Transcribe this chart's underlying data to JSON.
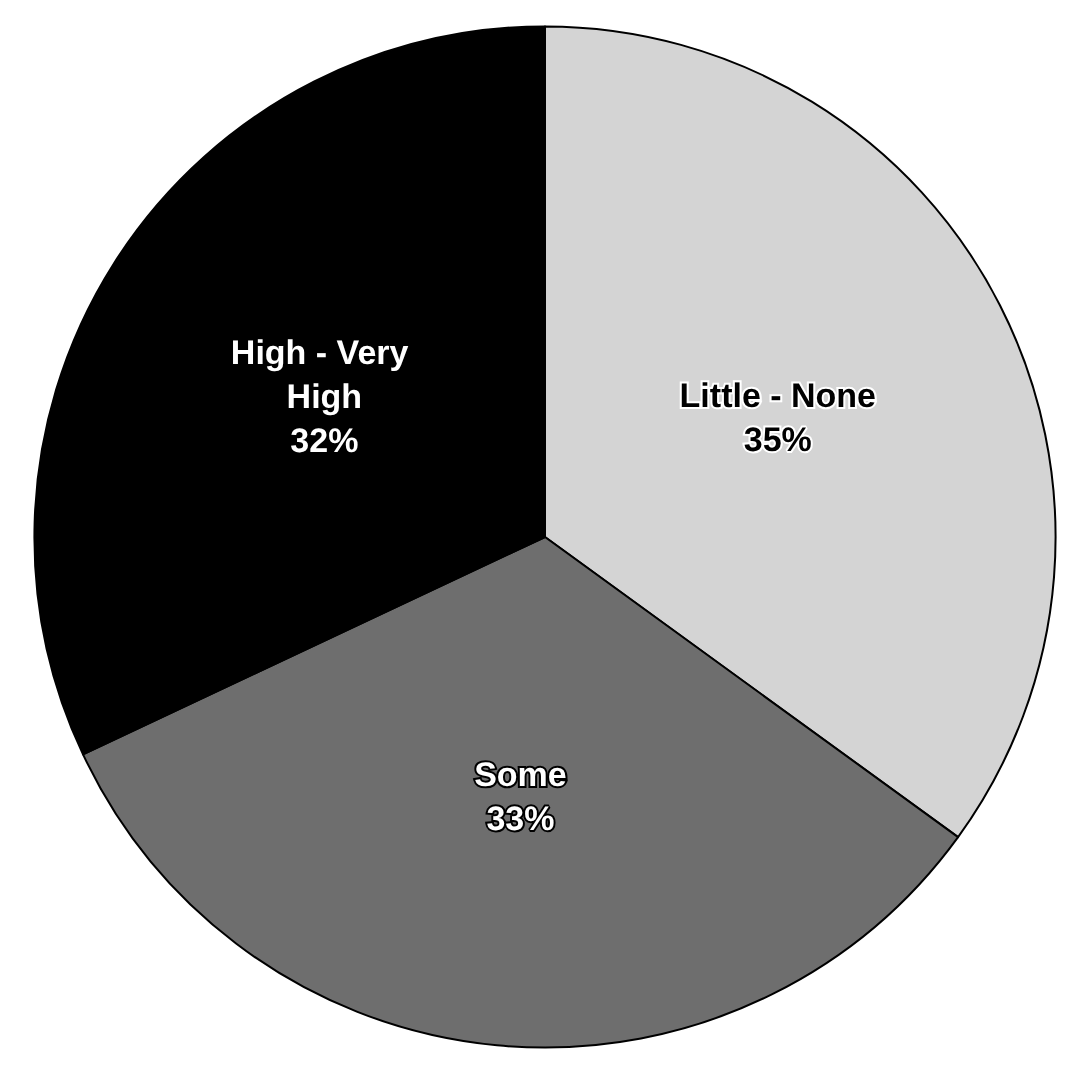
{
  "chart_data": {
    "type": "pie",
    "categories": [
      "Little - None",
      "Some",
      "High - Very High"
    ],
    "values": [
      35,
      33,
      32
    ],
    "value_labels": [
      "35%",
      "33%",
      "32%"
    ],
    "colors": [
      "#d4d4d4",
      "#6e6e6e",
      "#000000"
    ],
    "legend": false
  }
}
